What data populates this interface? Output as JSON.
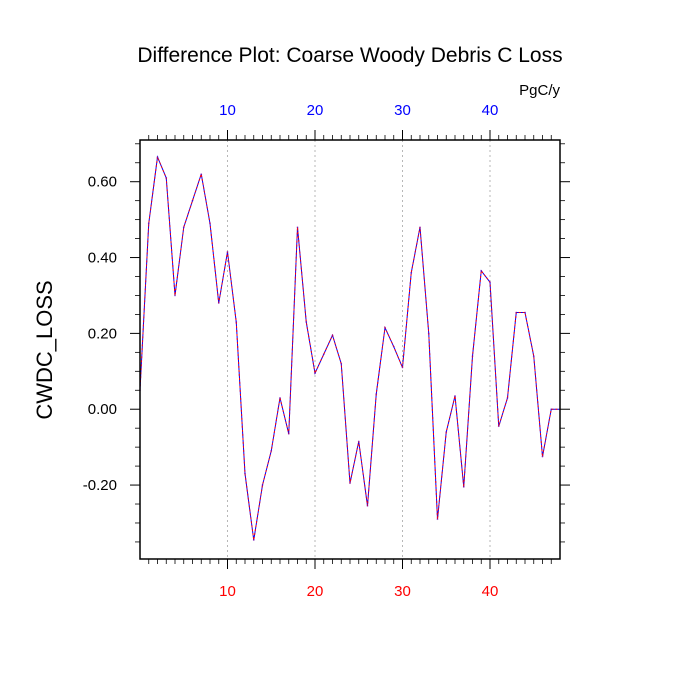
{
  "chart_data": {
    "type": "line",
    "title": "Difference Plot: Coarse Woody Debris C Loss",
    "ylabel": "CWDC_LOSS",
    "units": "PgC/y",
    "xlim": [
      0,
      48
    ],
    "ylim": [
      -0.395,
      0.71
    ],
    "x_ticks": [
      10,
      20,
      30,
      40
    ],
    "y_ticks": [
      -0.2,
      0.0,
      0.2,
      0.4,
      0.6
    ],
    "y_tick_labels": [
      "-0.20",
      "0.00",
      "0.20",
      "0.40",
      "0.60"
    ],
    "x_minor_step": 1,
    "y_minor_step": 0.05,
    "grid": "vertical dashed at major x ticks",
    "bottom_tick_color": "#ff0000",
    "top_tick_color": "#0000ff",
    "line_colors": [
      "#0000ff",
      "#ff0000"
    ],
    "series": [
      {
        "name": "CWDC_LOSS difference",
        "x": [
          0,
          1,
          2,
          3,
          4,
          5,
          6,
          7,
          8,
          9,
          10,
          11,
          12,
          13,
          14,
          15,
          16,
          17,
          18,
          19,
          20,
          21,
          22,
          23,
          24,
          25,
          26,
          27,
          28,
          29,
          30,
          31,
          32,
          33,
          34,
          35,
          36,
          37,
          38,
          39,
          40,
          41,
          42,
          43,
          44,
          45,
          46,
          47,
          48
        ],
        "values": [
          0.05,
          0.49,
          0.665,
          0.61,
          0.3,
          0.48,
          0.55,
          0.62,
          0.49,
          0.28,
          0.415,
          0.23,
          -0.17,
          -0.345,
          -0.2,
          -0.11,
          0.03,
          -0.065,
          0.48,
          0.23,
          0.095,
          0.145,
          0.195,
          0.12,
          -0.195,
          -0.085,
          -0.255,
          0.04,
          0.215,
          0.165,
          0.11,
          0.36,
          0.48,
          0.2,
          -0.29,
          -0.06,
          0.035,
          -0.205,
          0.14,
          0.365,
          0.335,
          -0.045,
          0.03,
          0.255,
          0.255,
          0.14,
          -0.125,
          0.0,
          0.0
        ]
      }
    ]
  }
}
